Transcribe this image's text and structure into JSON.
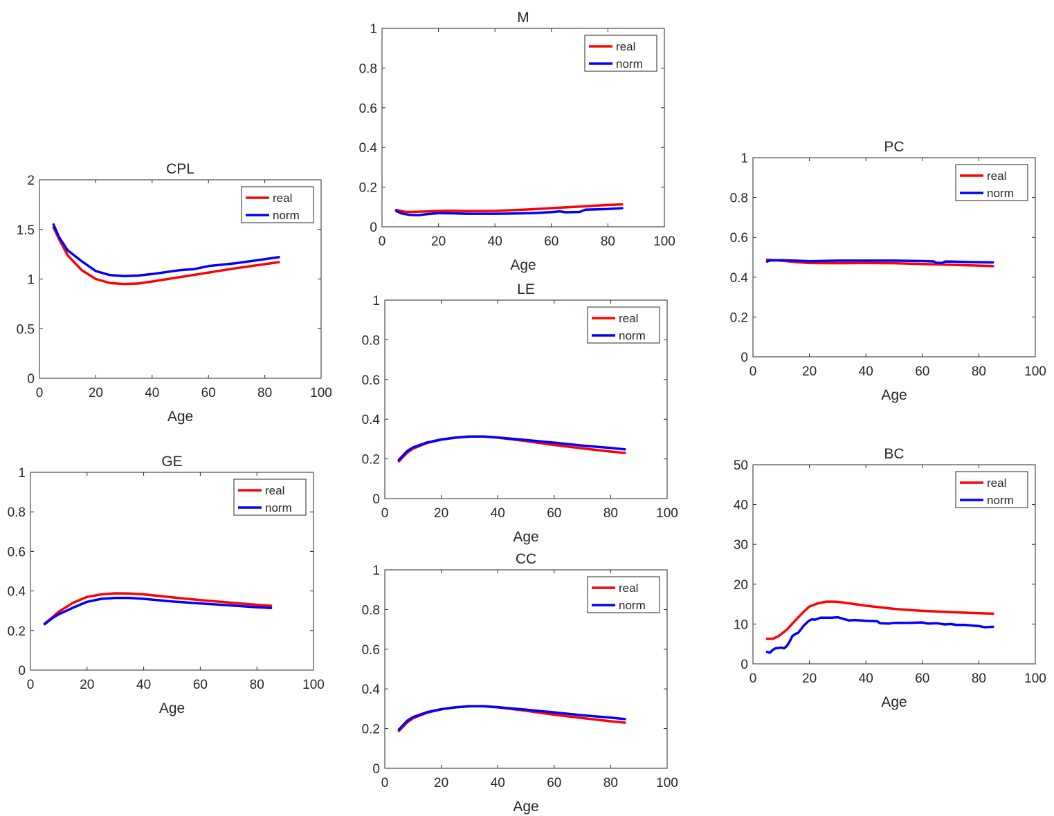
{
  "figure": {
    "series_colors": {
      "real": "#ff0000",
      "norm": "#0000ff"
    }
  },
  "chart_data": [
    {
      "id": "CPL",
      "type": "line",
      "title": "CPL",
      "xlabel": "Age",
      "ylabel": "",
      "xlim": [
        0,
        100
      ],
      "ylim": [
        0,
        2
      ],
      "xticks": [
        "0",
        "20",
        "40",
        "60",
        "80",
        "100"
      ],
      "yticks": [
        "0",
        "0.5",
        "1",
        "1.5",
        "2"
      ],
      "legend": {
        "position": "top-right",
        "entries": [
          "real",
          "norm"
        ]
      },
      "series": [
        {
          "name": "real",
          "x": [
            5,
            7,
            10,
            15,
            20,
            25,
            30,
            35,
            40,
            50,
            60,
            70,
            80,
            85
          ],
          "y": [
            1.52,
            1.4,
            1.24,
            1.09,
            1.0,
            0.96,
            0.95,
            0.955,
            0.975,
            1.02,
            1.065,
            1.11,
            1.15,
            1.17
          ]
        },
        {
          "name": "norm",
          "x": [
            5,
            7,
            10,
            15,
            20,
            25,
            30,
            35,
            40,
            50,
            55,
            60,
            70,
            80,
            85
          ],
          "y": [
            1.55,
            1.42,
            1.29,
            1.18,
            1.08,
            1.04,
            1.03,
            1.035,
            1.05,
            1.09,
            1.1,
            1.13,
            1.16,
            1.2,
            1.22
          ]
        }
      ]
    },
    {
      "id": "GE",
      "type": "line",
      "title": "GE",
      "xlabel": "Age",
      "ylabel": "",
      "xlim": [
        0,
        100
      ],
      "ylim": [
        0,
        1
      ],
      "xticks": [
        "0",
        "20",
        "40",
        "60",
        "80",
        "100"
      ],
      "yticks": [
        "0",
        "0.2",
        "0.4",
        "0.6",
        "0.8",
        "1"
      ],
      "legend": {
        "position": "top-right",
        "entries": [
          "real",
          "norm"
        ]
      },
      "series": [
        {
          "name": "real",
          "x": [
            5,
            8,
            10,
            15,
            20,
            25,
            30,
            35,
            40,
            50,
            60,
            70,
            80,
            85
          ],
          "y": [
            0.235,
            0.27,
            0.295,
            0.34,
            0.37,
            0.383,
            0.388,
            0.387,
            0.383,
            0.368,
            0.354,
            0.342,
            0.33,
            0.325
          ]
        },
        {
          "name": "norm",
          "x": [
            5,
            8,
            10,
            15,
            20,
            25,
            30,
            35,
            40,
            50,
            60,
            70,
            80,
            85
          ],
          "y": [
            0.232,
            0.265,
            0.282,
            0.315,
            0.345,
            0.36,
            0.365,
            0.365,
            0.36,
            0.347,
            0.337,
            0.328,
            0.318,
            0.314
          ]
        }
      ]
    },
    {
      "id": "M",
      "type": "line",
      "title": "M",
      "xlabel": "Age",
      "ylabel": "",
      "xlim": [
        0,
        100
      ],
      "ylim": [
        0,
        1
      ],
      "xticks": [
        "0",
        "20",
        "40",
        "60",
        "80",
        "100"
      ],
      "yticks": [
        "0",
        "0.2",
        "0.4",
        "0.6",
        "0.8",
        "1"
      ],
      "legend": {
        "position": "top-right",
        "entries": [
          "real",
          "norm"
        ]
      },
      "series": [
        {
          "name": "real",
          "x": [
            5,
            8,
            10,
            15,
            20,
            25,
            30,
            40,
            50,
            60,
            70,
            80,
            85
          ],
          "y": [
            0.085,
            0.076,
            0.075,
            0.077,
            0.08,
            0.081,
            0.079,
            0.08,
            0.086,
            0.094,
            0.102,
            0.11,
            0.113
          ]
        },
        {
          "name": "norm",
          "x": [
            5,
            7,
            10,
            13,
            16,
            20,
            25,
            30,
            40,
            50,
            55,
            60,
            63,
            65,
            70,
            72,
            80,
            85
          ],
          "y": [
            0.08,
            0.067,
            0.06,
            0.059,
            0.064,
            0.069,
            0.068,
            0.066,
            0.066,
            0.068,
            0.07,
            0.074,
            0.078,
            0.073,
            0.075,
            0.086,
            0.09,
            0.094
          ]
        }
      ]
    },
    {
      "id": "LE",
      "type": "line",
      "title": "LE",
      "xlabel": "Age",
      "ylabel": "",
      "xlim": [
        0,
        100
      ],
      "ylim": [
        0,
        1
      ],
      "xticks": [
        "0",
        "20",
        "40",
        "60",
        "80",
        "100"
      ],
      "yticks": [
        "0",
        "0.2",
        "0.4",
        "0.6",
        "0.8",
        "1"
      ],
      "legend": {
        "position": "top-right",
        "entries": [
          "real",
          "norm"
        ]
      },
      "series": [
        {
          "name": "real",
          "x": [
            5,
            8,
            10,
            15,
            20,
            25,
            30,
            35,
            40,
            50,
            60,
            70,
            80,
            85
          ],
          "y": [
            0.188,
            0.232,
            0.252,
            0.28,
            0.297,
            0.307,
            0.313,
            0.313,
            0.307,
            0.29,
            0.27,
            0.253,
            0.237,
            0.23
          ]
        },
        {
          "name": "norm",
          "x": [
            5,
            8,
            10,
            15,
            20,
            25,
            30,
            35,
            40,
            50,
            60,
            70,
            80,
            85
          ],
          "y": [
            0.195,
            0.24,
            0.258,
            0.283,
            0.298,
            0.307,
            0.313,
            0.313,
            0.308,
            0.295,
            0.282,
            0.267,
            0.255,
            0.248
          ]
        }
      ]
    },
    {
      "id": "CC",
      "type": "line",
      "title": "CC",
      "xlabel": "Age",
      "ylabel": "",
      "xlim": [
        0,
        100
      ],
      "ylim": [
        0,
        1
      ],
      "xticks": [
        "0",
        "20",
        "40",
        "60",
        "80",
        "100"
      ],
      "yticks": [
        "0",
        "0.2",
        "0.4",
        "0.6",
        "0.8",
        "1"
      ],
      "legend": {
        "position": "top-right",
        "entries": [
          "real",
          "norm"
        ]
      },
      "series": [
        {
          "name": "real",
          "x": [
            5,
            8,
            10,
            15,
            20,
            25,
            30,
            35,
            40,
            50,
            60,
            70,
            80,
            85
          ],
          "y": [
            0.188,
            0.232,
            0.252,
            0.28,
            0.297,
            0.307,
            0.313,
            0.313,
            0.307,
            0.29,
            0.27,
            0.253,
            0.237,
            0.23
          ]
        },
        {
          "name": "norm",
          "x": [
            5,
            8,
            10,
            15,
            20,
            25,
            30,
            35,
            40,
            50,
            60,
            70,
            80,
            85
          ],
          "y": [
            0.195,
            0.24,
            0.258,
            0.283,
            0.298,
            0.307,
            0.313,
            0.313,
            0.308,
            0.295,
            0.282,
            0.267,
            0.255,
            0.248
          ]
        }
      ]
    },
    {
      "id": "PC",
      "type": "line",
      "title": "PC",
      "xlabel": "Age",
      "ylabel": "",
      "xlim": [
        0,
        100
      ],
      "ylim": [
        0,
        1
      ],
      "xticks": [
        "0",
        "20",
        "40",
        "60",
        "80",
        "100"
      ],
      "yticks": [
        "0",
        "0.2",
        "0.4",
        "0.6",
        "0.8",
        "1"
      ],
      "legend": {
        "position": "top-right",
        "entries": [
          "real",
          "norm"
        ]
      },
      "series": [
        {
          "name": "real",
          "x": [
            5,
            10,
            15,
            20,
            30,
            40,
            50,
            60,
            70,
            80,
            85
          ],
          "y": [
            0.488,
            0.483,
            0.476,
            0.471,
            0.47,
            0.471,
            0.47,
            0.466,
            0.462,
            0.458,
            0.456
          ]
        },
        {
          "name": "norm",
          "x": [
            5,
            6,
            10,
            15,
            20,
            30,
            40,
            50,
            60,
            64,
            65,
            67,
            68,
            70,
            80,
            85
          ],
          "y": [
            0.478,
            0.484,
            0.485,
            0.483,
            0.48,
            0.483,
            0.483,
            0.483,
            0.481,
            0.479,
            0.472,
            0.472,
            0.478,
            0.478,
            0.475,
            0.474
          ]
        }
      ]
    },
    {
      "id": "BC",
      "type": "line",
      "title": "BC",
      "xlabel": "Age",
      "ylabel": "",
      "xlim": [
        0,
        100
      ],
      "ylim": [
        0,
        50
      ],
      "xticks": [
        "0",
        "20",
        "40",
        "60",
        "80",
        "100"
      ],
      "yticks": [
        "0",
        "10",
        "20",
        "30",
        "40",
        "50"
      ],
      "legend": {
        "position": "top-right",
        "entries": [
          "real",
          "norm"
        ]
      },
      "series": [
        {
          "name": "real",
          "x": [
            5,
            7,
            9,
            12,
            15,
            18,
            20,
            23,
            26,
            29,
            32,
            35,
            40,
            50,
            60,
            70,
            80,
            85
          ],
          "y": [
            6.3,
            6.3,
            6.9,
            8.6,
            10.9,
            13.1,
            14.4,
            15.2,
            15.6,
            15.6,
            15.4,
            15.1,
            14.6,
            13.8,
            13.3,
            13.0,
            12.7,
            12.6
          ]
        },
        {
          "name": "norm",
          "x": [
            5,
            6,
            7,
            8,
            9,
            10,
            11,
            12,
            13,
            14,
            15,
            16,
            17,
            18,
            19,
            20,
            21,
            22,
            24,
            26,
            28,
            30,
            32,
            34,
            36,
            40,
            44,
            45,
            48,
            50,
            55,
            60,
            62,
            65,
            68,
            70,
            72,
            75,
            78,
            80,
            82,
            85
          ],
          "y": [
            3.0,
            2.8,
            3.5,
            3.9,
            4.0,
            4.1,
            3.9,
            4.5,
            5.6,
            7.0,
            7.5,
            7.8,
            8.7,
            9.6,
            10.3,
            10.9,
            11.2,
            11.1,
            11.6,
            11.6,
            11.6,
            11.7,
            11.3,
            10.9,
            11.0,
            10.8,
            10.7,
            10.2,
            10.1,
            10.3,
            10.3,
            10.4,
            10.1,
            10.2,
            9.9,
            10.0,
            9.8,
            9.8,
            9.6,
            9.5,
            9.2,
            9.3
          ]
        }
      ]
    }
  ]
}
